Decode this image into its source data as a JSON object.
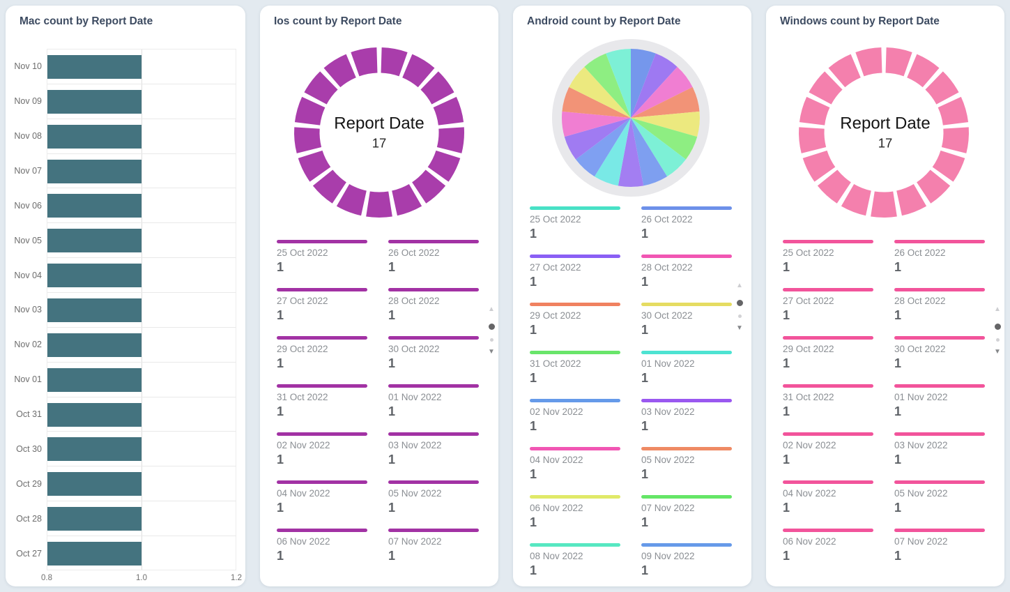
{
  "page": {
    "background": "#e3eaf0",
    "card_background": "#ffffff",
    "title_color": "#3d4b61"
  },
  "pagination": {
    "up_glyph": "▲",
    "down_glyph": "▼",
    "pages": 2,
    "active_page": 1
  },
  "chart_data": [
    {
      "type": "bar",
      "title": "Mac count by Report Date",
      "orientation": "horizontal",
      "categories": [
        "Nov 10",
        "Nov 09",
        "Nov 08",
        "Nov 07",
        "Nov 06",
        "Nov 05",
        "Nov 04",
        "Nov 03",
        "Nov 02",
        "Nov 01",
        "Oct 31",
        "Oct 30",
        "Oct 29",
        "Oct 28",
        "Oct 27"
      ],
      "values": [
        1.0,
        1.0,
        1.0,
        1.0,
        1.0,
        1.0,
        1.0,
        1.0,
        1.0,
        1.0,
        1.0,
        1.0,
        1.0,
        1.0,
        1.0
      ],
      "xlim": [
        0.8,
        1.2
      ],
      "x_ticks": [
        0.8,
        1.0,
        1.2
      ],
      "x_tick_labels": [
        "0.8",
        "1.0",
        "1.2"
      ],
      "bar_color": "#44737f",
      "grid": true
    },
    {
      "type": "donut",
      "title": "Ios count by Report Date",
      "center_label": "Report Date",
      "center_value": "17",
      "segment_count": 17,
      "ring_color": "#a93dab",
      "legend_color": "#a232a4",
      "legend_entries": [
        {
          "label": "25 Oct 2022",
          "value": "1"
        },
        {
          "label": "26 Oct 2022",
          "value": "1"
        },
        {
          "label": "27 Oct 2022",
          "value": "1"
        },
        {
          "label": "28 Oct 2022",
          "value": "1"
        },
        {
          "label": "29 Oct 2022",
          "value": "1"
        },
        {
          "label": "30 Oct 2022",
          "value": "1"
        },
        {
          "label": "31 Oct 2022",
          "value": "1"
        },
        {
          "label": "01 Nov 2022",
          "value": "1"
        },
        {
          "label": "02 Nov 2022",
          "value": "1"
        },
        {
          "label": "03 Nov 2022",
          "value": "1"
        },
        {
          "label": "04 Nov 2022",
          "value": "1"
        },
        {
          "label": "05 Nov 2022",
          "value": "1"
        },
        {
          "label": "06 Nov 2022",
          "value": "1"
        },
        {
          "label": "07 Nov 2022",
          "value": "1"
        }
      ]
    },
    {
      "type": "pie",
      "title": "Android count by Report Date",
      "slice_count": 17,
      "outer_ring_color": "#e8e8eb",
      "slice_colors_clockwise_from_top": [
        "#7597ec",
        "#9e79f2",
        "#f07ed2",
        "#f29377",
        "#ece97f",
        "#8eee82",
        "#7df0d6",
        "#7e9ff0",
        "#a37ef2",
        "#79e9e6",
        "#7fa0f2",
        "#a07bf2",
        "#f07ed2",
        "#f29377",
        "#ece97f",
        "#8eee82",
        "#7df0d6"
      ],
      "legend_entries": [
        {
          "label": "25 Oct 2022",
          "value": "1",
          "color": "#48e1c6"
        },
        {
          "label": "26 Oct 2022",
          "value": "1",
          "color": "#6d90e9"
        },
        {
          "label": "27 Oct 2022",
          "value": "1",
          "color": "#8a5ff5"
        },
        {
          "label": "28 Oct 2022",
          "value": "1",
          "color": "#f156b3"
        },
        {
          "label": "29 Oct 2022",
          "value": "1",
          "color": "#f08160"
        },
        {
          "label": "30 Oct 2022",
          "value": "1",
          "color": "#e5dc62"
        },
        {
          "label": "31 Oct 2022",
          "value": "1",
          "color": "#69e56a"
        },
        {
          "label": "01 Nov 2022",
          "value": "1",
          "color": "#4de3d2"
        },
        {
          "label": "02 Nov 2022",
          "value": "1",
          "color": "#659ae9"
        },
        {
          "label": "03 Nov 2022",
          "value": "1",
          "color": "#9a58f0"
        },
        {
          "label": "04 Nov 2022",
          "value": "1",
          "color": "#f156b3"
        },
        {
          "label": "05 Nov 2022",
          "value": "1",
          "color": "#ef8a64"
        },
        {
          "label": "06 Nov 2022",
          "value": "1",
          "color": "#e0e968"
        },
        {
          "label": "07 Nov 2022",
          "value": "1",
          "color": "#65e667"
        },
        {
          "label": "08 Nov 2022",
          "value": "1",
          "color": "#57e8c2"
        },
        {
          "label": "09 Nov 2022",
          "value": "1",
          "color": "#669ae9"
        }
      ]
    },
    {
      "type": "donut",
      "title": "Windows count by Report Date",
      "center_label": "Report Date",
      "center_value": "17",
      "segment_count": 17,
      "ring_color": "#f480ad",
      "legend_color": "#f2549b",
      "legend_entries": [
        {
          "label": "25 Oct 2022",
          "value": "1"
        },
        {
          "label": "26 Oct 2022",
          "value": "1"
        },
        {
          "label": "27 Oct 2022",
          "value": "1"
        },
        {
          "label": "28 Oct 2022",
          "value": "1"
        },
        {
          "label": "29 Oct 2022",
          "value": "1"
        },
        {
          "label": "30 Oct 2022",
          "value": "1"
        },
        {
          "label": "31 Oct 2022",
          "value": "1"
        },
        {
          "label": "01 Nov 2022",
          "value": "1"
        },
        {
          "label": "02 Nov 2022",
          "value": "1"
        },
        {
          "label": "03 Nov 2022",
          "value": "1"
        },
        {
          "label": "04 Nov 2022",
          "value": "1"
        },
        {
          "label": "05 Nov 2022",
          "value": "1"
        },
        {
          "label": "06 Nov 2022",
          "value": "1"
        },
        {
          "label": "07 Nov 2022",
          "value": "1"
        }
      ]
    }
  ]
}
